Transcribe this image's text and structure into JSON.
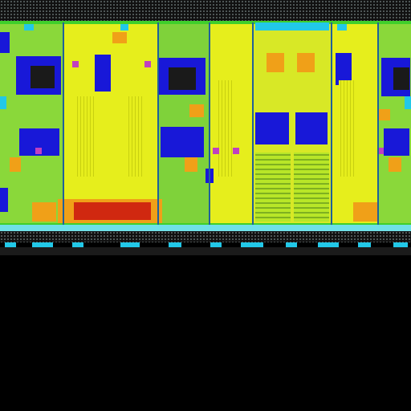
{
  "image": {
    "subject": "die-photo",
    "palette": {
      "background": "#000000",
      "yellow": "#e6ee1c",
      "green": "#3fcf2b",
      "lime": "#a6e53a",
      "blue": "#1818d8",
      "cyan": "#22c8e8",
      "orange": "#f0a018",
      "red": "#d02810",
      "magenta": "#c040c0",
      "olive": "#6a8a18"
    }
  }
}
